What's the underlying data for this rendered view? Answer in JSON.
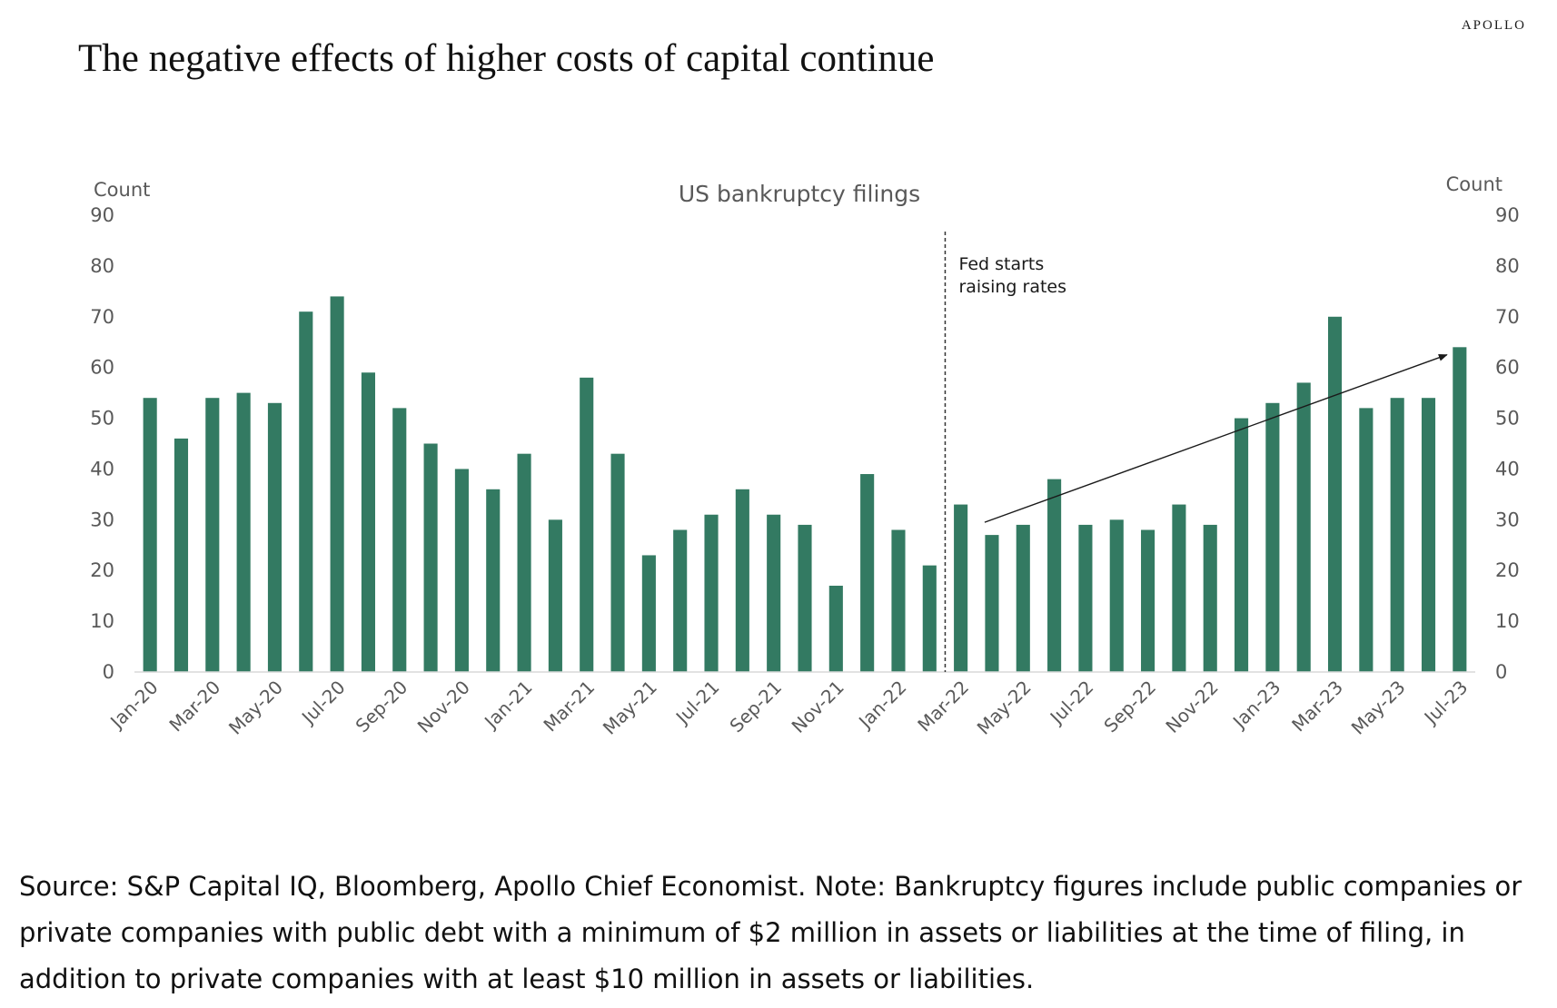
{
  "brand": "APOLLO",
  "headline": "The negative effects of higher costs of capital continue",
  "source_note": "Source: S&P Capital IQ, Bloomberg, Apollo Chief Economist. Note: Bankruptcy figures include public companies or private companies with public debt with a minimum of $2 million in assets or liabilities at the time of filing, in addition to private companies with at least $10 million in assets or liabilities.",
  "chart_data": {
    "type": "bar",
    "title": "US bankruptcy filings",
    "ylabel_left": "Count",
    "ylabel_right": "Count",
    "ylim": [
      0,
      90
    ],
    "yticks": [
      0,
      10,
      20,
      30,
      40,
      50,
      60,
      70,
      80,
      90
    ],
    "grid": false,
    "bar_color": "#337A62",
    "categories": [
      "Jan-20",
      "Feb-20",
      "Mar-20",
      "Apr-20",
      "May-20",
      "Jun-20",
      "Jul-20",
      "Aug-20",
      "Sep-20",
      "Oct-20",
      "Nov-20",
      "Dec-20",
      "Jan-21",
      "Feb-21",
      "Mar-21",
      "Apr-21",
      "May-21",
      "Jun-21",
      "Jul-21",
      "Aug-21",
      "Sep-21",
      "Oct-21",
      "Nov-21",
      "Dec-21",
      "Jan-22",
      "Feb-22",
      "Mar-22",
      "Apr-22",
      "May-22",
      "Jun-22",
      "Jul-22",
      "Aug-22",
      "Sep-22",
      "Oct-22",
      "Nov-22",
      "Dec-22",
      "Jan-23",
      "Feb-23",
      "Mar-23",
      "Apr-23",
      "May-23",
      "Jun-23",
      "Jul-23"
    ],
    "tick_labels": [
      "Jan-20",
      "Mar-20",
      "May-20",
      "Jul-20",
      "Sep-20",
      "Nov-20",
      "Jan-21",
      "Mar-21",
      "May-21",
      "Jul-21",
      "Sep-21",
      "Nov-21",
      "Jan-22",
      "Mar-22",
      "May-22",
      "Jul-22",
      "Sep-22",
      "Nov-22",
      "Jan-23",
      "Mar-23",
      "May-23",
      "Jul-23"
    ],
    "values": [
      54,
      46,
      54,
      55,
      53,
      71,
      74,
      59,
      52,
      45,
      40,
      36,
      43,
      30,
      58,
      43,
      23,
      28,
      31,
      36,
      31,
      29,
      17,
      39,
      28,
      21,
      33,
      27,
      29,
      38,
      29,
      30,
      28,
      33,
      29,
      50,
      53,
      57,
      70,
      52,
      54,
      54,
      64
    ],
    "annotation": {
      "text_lines": [
        "Fed starts",
        "raising rates"
      ],
      "at_category": "Mar-22",
      "line_style": "dashed-vertical"
    },
    "trend_arrow": {
      "from": {
        "category": "Apr-22",
        "value": 29.5
      },
      "to": {
        "category": "Jul-23",
        "value": 62.5
      }
    }
  }
}
